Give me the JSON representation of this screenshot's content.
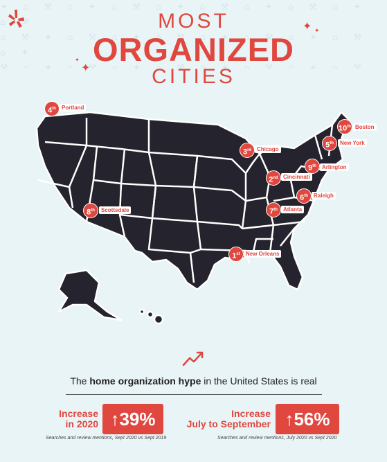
{
  "title": {
    "line1": "MOST",
    "line2": "ORGANIZED",
    "line3": "CITIES"
  },
  "colors": {
    "accent": "#e0473f",
    "map": "#25242e",
    "background": "#e9f4f6"
  },
  "icons": {
    "logo": "yelp-burst-icon",
    "sparkle": "sparkle-icon",
    "trend": "trend-up-arrow-icon"
  },
  "cities": [
    {
      "rank": "1",
      "name": "New Orleans"
    },
    {
      "rank": "2",
      "name": "Cincinnati"
    },
    {
      "rank": "3",
      "name": "Chicago"
    },
    {
      "rank": "4",
      "name": "Portland"
    },
    {
      "rank": "5",
      "name": "New York"
    },
    {
      "rank": "6",
      "name": "Raleigh"
    },
    {
      "rank": "7",
      "name": "Atlanta"
    },
    {
      "rank": "8",
      "name": "Scottsdale"
    },
    {
      "rank": "9",
      "name": "Arlington"
    },
    {
      "rank": "10",
      "name": "Boston"
    }
  ],
  "subtitle": {
    "pre": "The ",
    "bold": "home organization hype",
    "post": " in the United States is real"
  },
  "stats": [
    {
      "label_line1": "Increase",
      "label_line2": "in 2020",
      "value": "↑39%",
      "note": "Searches and review mentions, Sept 2020 vs Sept 2019"
    },
    {
      "label_line1": "Increase",
      "label_line2": "July to September",
      "value": "↑56%",
      "note": "Searches and review mentions, July 2020 vs Sept 2020"
    }
  ]
}
